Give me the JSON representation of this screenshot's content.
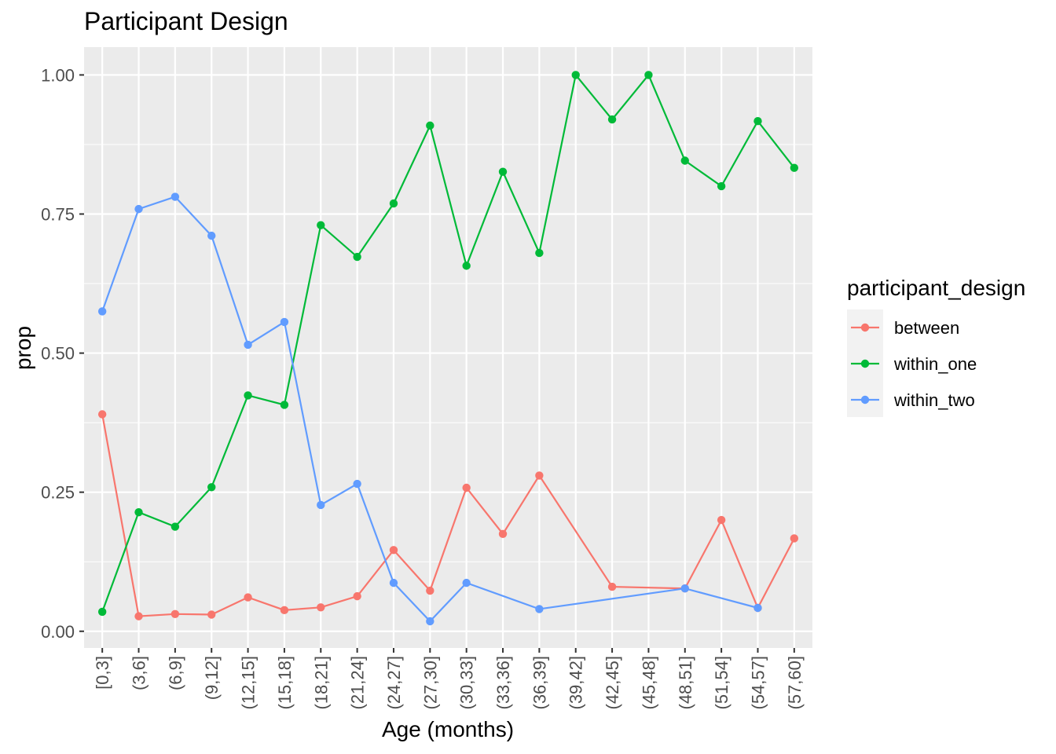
{
  "chart_data": {
    "type": "line",
    "title": "Participant Design",
    "xlabel": "Age (months)",
    "ylabel": "prop",
    "ylim": [
      -0.03,
      1.05
    ],
    "yticks": [
      0.0,
      0.25,
      0.5,
      0.75,
      1.0
    ],
    "ytick_labels": [
      "0.00",
      "0.25",
      "0.50",
      "0.75",
      "1.00"
    ],
    "grid": true,
    "legend_title": "participant_design",
    "legend_position": "right",
    "categories": [
      "[0,3]",
      "(3,6]",
      "(6,9]",
      "(9,12]",
      "(12,15]",
      "(15,18]",
      "(18,21]",
      "(21,24]",
      "(24,27]",
      "(27,30]",
      "(30,33]",
      "(33,36]",
      "(36,39]",
      "(39,42]",
      "(42,45]",
      "(45,48]",
      "(48,51]",
      "(51,54]",
      "(54,57]",
      "(57,60]"
    ],
    "series": [
      {
        "name": "between",
        "color": "#F8766D",
        "values": [
          0.39,
          0.027,
          0.031,
          0.03,
          0.061,
          0.038,
          0.043,
          0.063,
          0.146,
          0.073,
          0.258,
          0.175,
          0.28,
          null,
          0.08,
          null,
          0.077,
          0.2,
          0.042,
          0.167
        ]
      },
      {
        "name": "within_one",
        "color": "#00BA38",
        "values": [
          0.035,
          0.214,
          0.188,
          0.259,
          0.424,
          0.407,
          0.73,
          0.673,
          0.769,
          0.909,
          0.657,
          0.826,
          0.68,
          1.0,
          0.92,
          1.0,
          0.846,
          0.8,
          0.917,
          0.833
        ]
      },
      {
        "name": "within_two",
        "color": "#619CFF",
        "values": [
          0.575,
          0.759,
          0.781,
          0.711,
          0.515,
          0.556,
          0.227,
          0.265,
          0.087,
          0.018,
          0.087,
          null,
          0.04,
          null,
          null,
          null,
          0.077,
          null,
          0.042,
          null
        ]
      }
    ]
  }
}
